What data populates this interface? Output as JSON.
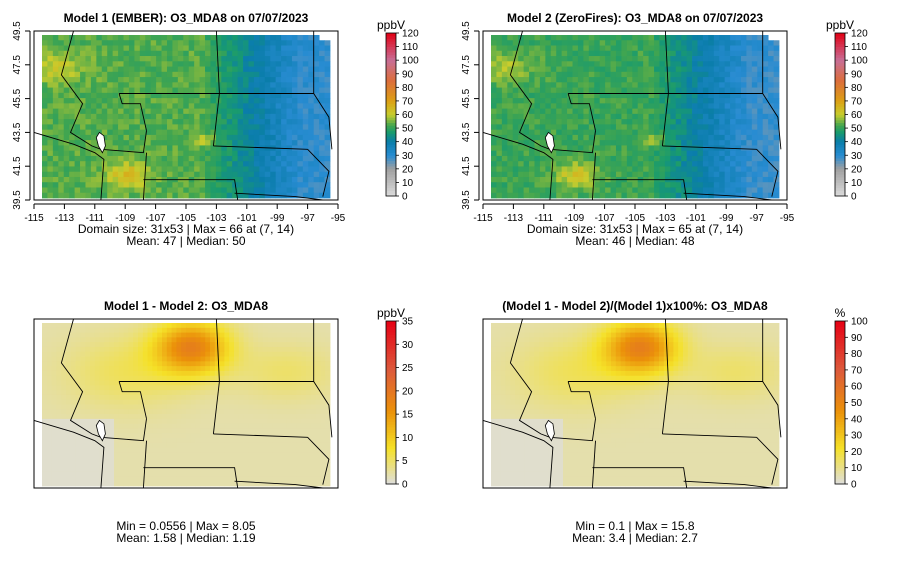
{
  "chart_data": [
    {
      "type": "heatmap",
      "title": "Model 1 (EMBER): O3_MDA8 on 07/07/2023",
      "xlabel": "",
      "ylabel": "",
      "x_ticks": [
        "-115",
        "-113",
        "-111",
        "-109",
        "-107",
        "-105",
        "-103",
        "-101",
        "-99",
        "-97",
        "-95"
      ],
      "y_ticks": [
        "39.5",
        "41.5",
        "43.5",
        "45.5",
        "47.5",
        "49.5"
      ],
      "xlim": [
        -115,
        -95
      ],
      "ylim": [
        39.5,
        49.5
      ],
      "legend": {
        "unit": "ppbV",
        "ticks": [
          "0",
          "10",
          "20",
          "30",
          "40",
          "50",
          "60",
          "70",
          "80",
          "90",
          "100",
          "110",
          "120"
        ],
        "range": [
          0,
          120
        ]
      },
      "colormap": "terrain-like",
      "field": {
        "min": 25,
        "max": 66,
        "max_at": "(7, 14)",
        "west_level": 53,
        "east_level": 30,
        "hotspot": "SE Idaho"
      },
      "stats": {
        "line1": "Domain size: 31x53 | Max = 66 at (7, 14)",
        "line2": "Mean: 47 |  Median: 50"
      }
    },
    {
      "type": "heatmap",
      "title": "Model 2 (ZeroFires): O3_MDA8 on 07/07/2023",
      "xlabel": "",
      "ylabel": "",
      "x_ticks": [
        "-115",
        "-113",
        "-111",
        "-109",
        "-107",
        "-105",
        "-103",
        "-101",
        "-99",
        "-97",
        "-95"
      ],
      "y_ticks": [
        "39.5",
        "41.5",
        "43.5",
        "45.5",
        "47.5",
        "49.5"
      ],
      "xlim": [
        -115,
        -95
      ],
      "ylim": [
        39.5,
        49.5
      ],
      "legend": {
        "unit": "ppbV",
        "ticks": [
          "0",
          "10",
          "20",
          "30",
          "40",
          "50",
          "60",
          "70",
          "80",
          "90",
          "100",
          "110",
          "120"
        ],
        "range": [
          0,
          120
        ]
      },
      "colormap": "terrain-like",
      "field": {
        "min": 25,
        "max": 65,
        "max_at": "(7, 14)",
        "west_level": 51,
        "east_level": 29,
        "hotspot": "SE Idaho"
      },
      "stats": {
        "line1": "Domain size: 31x53 | Max = 65 at (7, 14)",
        "line2": "Mean: 46 |  Median: 48"
      }
    },
    {
      "type": "heatmap",
      "title": "Model 1 - Model 2: O3_MDA8",
      "legend": {
        "unit": "ppbV",
        "ticks": [
          "0",
          "5",
          "10",
          "15",
          "20",
          "25",
          "30",
          "35"
        ],
        "range": [
          0,
          35
        ]
      },
      "colormap": "grey-yellow-red",
      "field": {
        "min": 0.0556,
        "max": 8.05,
        "hotspot": "north-central Montana"
      },
      "stats": {
        "line1": "Min = 0.0556 | Max = 8.05",
        "line2": "Mean: 1.58 |  Median: 1.19"
      }
    },
    {
      "type": "heatmap",
      "title": "(Model 1 - Model 2)/(Model 1)x100%: O3_MDA8",
      "legend": {
        "unit": "%",
        "ticks": [
          "0",
          "10",
          "20",
          "30",
          "40",
          "50",
          "60",
          "70",
          "80",
          "90",
          "100"
        ],
        "range": [
          0,
          100
        ]
      },
      "colormap": "grey-yellow-red",
      "field": {
        "min": 0.1,
        "max": 15.8,
        "hotspot": "north-central Montana"
      },
      "stats": {
        "line1": "Min = 0.1 | Max = 15.8",
        "line2": "Mean: 3.4 |  Median: 2.7"
      }
    }
  ]
}
